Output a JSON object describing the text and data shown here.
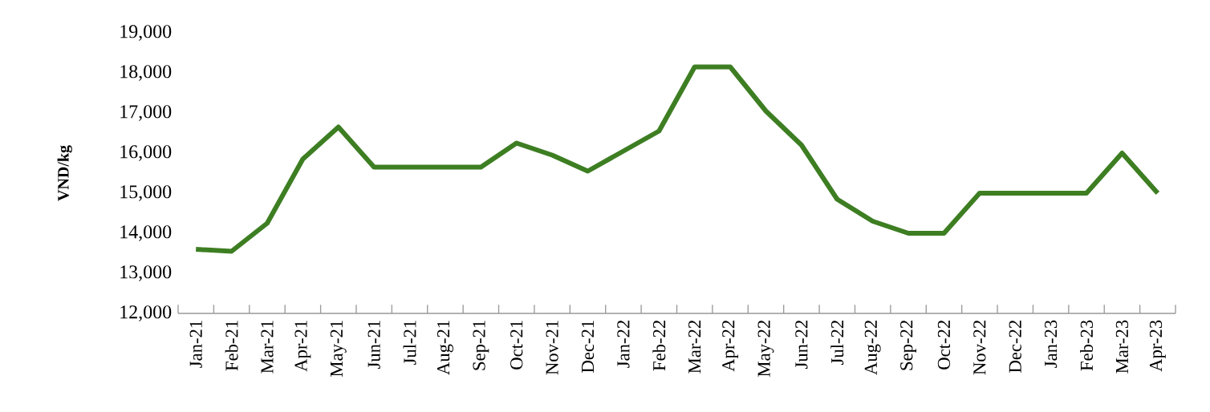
{
  "chart_data": {
    "type": "line",
    "ylabel": "VND/kg",
    "categories": [
      "Jan-21",
      "Feb-21",
      "Mar-21",
      "Apr-21",
      "May-21",
      "Jun-21",
      "Jul-21",
      "Aug-21",
      "Sep-21",
      "Oct-21",
      "Nov-21",
      "Dec-21",
      "Jan-22",
      "Feb-22",
      "Mar-22",
      "Apr-22",
      "May-22",
      "Jun-22",
      "Jul-22",
      "Aug-22",
      "Sep-22",
      "Oct-22",
      "Nov-22",
      "Dec-22",
      "Jan-23",
      "Feb-23",
      "Mar-23",
      "Apr-23"
    ],
    "values": [
      13600,
      13550,
      14250,
      15850,
      16650,
      15650,
      15650,
      15650,
      15650,
      16250,
      15950,
      15550,
      16050,
      16550,
      18150,
      18150,
      17050,
      16200,
      14850,
      14300,
      14000,
      14000,
      15000,
      15000,
      15000,
      15000,
      16000,
      15000
    ],
    "color": "#3d7e22",
    "ylim": [
      12000,
      19000
    ],
    "yticks": [
      {
        "value": 12000,
        "label": "12,000"
      },
      {
        "value": 13000,
        "label": "13,000"
      },
      {
        "value": 14000,
        "label": "14,000"
      },
      {
        "value": 15000,
        "label": "15,000"
      },
      {
        "value": 16000,
        "label": "16,000"
      },
      {
        "value": 17000,
        "label": "17,000"
      },
      {
        "value": 18000,
        "label": "18,000"
      },
      {
        "value": 19000,
        "label": "19,000"
      }
    ],
    "marker": "none",
    "line_style": "solid"
  }
}
